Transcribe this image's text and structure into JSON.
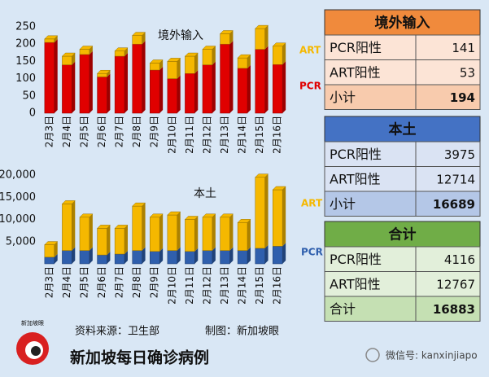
{
  "chart_data": [
    {
      "type": "bar",
      "title": "境外输入",
      "categories": [
        "2月3日",
        "2月4日",
        "2月5日",
        "2月6日",
        "2月7日",
        "2月8日",
        "2月9日",
        "2月10日",
        "2月11日",
        "2月12日",
        "2月13日",
        "2月14日",
        "2月15日",
        "2月16日"
      ],
      "series": [
        {
          "name": "PCR",
          "color": "#e00000",
          "values": [
            205,
            140,
            170,
            105,
            165,
            200,
            125,
            100,
            115,
            140,
            200,
            130,
            185,
            141
          ]
        },
        {
          "name": "ART",
          "color": "#f5b800",
          "values": [
            10,
            25,
            15,
            10,
            15,
            25,
            20,
            50,
            50,
            45,
            30,
            30,
            60,
            53
          ]
        }
      ],
      "ylim": [
        0,
        250
      ],
      "yticks": [
        0,
        50,
        100,
        150,
        200,
        250
      ],
      "stacked": true
    },
    {
      "type": "bar",
      "title": "本土",
      "categories": [
        "2月3日",
        "2月4日",
        "2月5日",
        "2月6日",
        "2月7日",
        "2月8日",
        "2月9日",
        "2月10日",
        "2月11日",
        "2月12日",
        "2月13日",
        "2月14日",
        "2月15日",
        "2月16日"
      ],
      "series": [
        {
          "name": "PCR",
          "color": "#2f5fad",
          "values": [
            1500,
            3000,
            3000,
            2000,
            2200,
            3000,
            2800,
            3000,
            2800,
            3000,
            3000,
            3000,
            3500,
            3975
          ]
        },
        {
          "name": "ART",
          "color": "#f5b800",
          "values": [
            2800,
            10500,
            7500,
            6000,
            5800,
            10000,
            7700,
            8000,
            7200,
            7500,
            7500,
            6300,
            16000,
            12714
          ]
        }
      ],
      "ylim": [
        0,
        20000
      ],
      "yticks": [
        {
          "value": 5000,
          "label": "5,000"
        },
        {
          "value": 10000,
          "label": "10,000"
        },
        {
          "value": 15000,
          "label": "15,000"
        },
        {
          "value": 20000,
          "label": "20,000"
        }
      ],
      "stacked": true
    }
  ],
  "tables": [
    {
      "title": "境外输入",
      "rows": [
        [
          "PCR阳性",
          141
        ],
        [
          "ART阳性",
          53
        ],
        [
          "小计",
          194
        ]
      ]
    },
    {
      "title": "本土",
      "rows": [
        [
          "PCR阳性",
          3975
        ],
        [
          "ART阳性",
          12714
        ],
        [
          "小计",
          16689
        ]
      ]
    },
    {
      "title": "合计",
      "rows": [
        [
          "PCR阳性",
          4116
        ],
        [
          "ART阳性",
          12767
        ],
        [
          "合计",
          16883
        ]
      ]
    }
  ],
  "footer": {
    "logo": "新加坡眼",
    "source": "资料来源：卫生部",
    "made_by": "制图：新加坡眼",
    "headline": "新加坡每日确诊病例",
    "wechat": "微信号: kanxinjiapo"
  }
}
